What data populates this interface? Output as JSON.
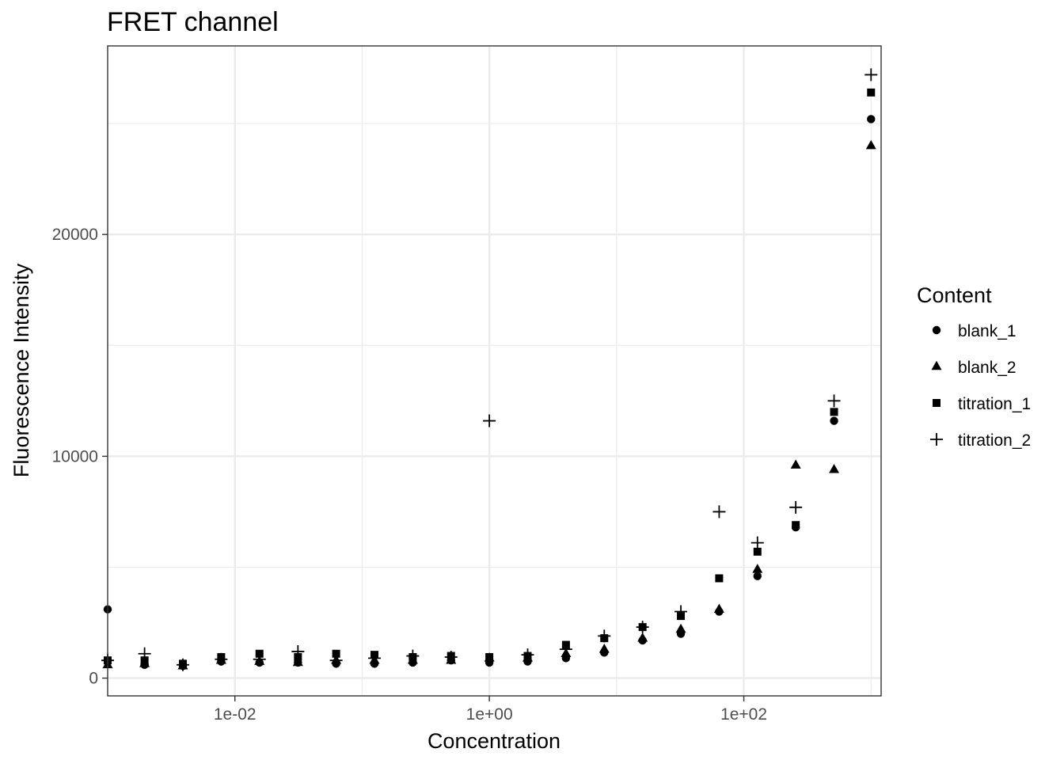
{
  "chart_data": {
    "type": "scatter",
    "title": "FRET channel",
    "xlabel": "Concentration",
    "ylabel": "Fluorescence Intensity",
    "x_scale": "log10",
    "xlim": [
      0.001,
      1200
    ],
    "ylim": [
      -800,
      28500
    ],
    "x_ticks": [
      {
        "value": 0.01,
        "label": "1e-02"
      },
      {
        "value": 1,
        "label": "1e+00"
      },
      {
        "value": 100,
        "label": "1e+02"
      }
    ],
    "y_ticks": [
      {
        "value": 0,
        "label": "0"
      },
      {
        "value": 10000,
        "label": "10000"
      },
      {
        "value": 20000,
        "label": "20000"
      }
    ],
    "grid": true,
    "legend": {
      "title": "Content",
      "position": "right"
    },
    "x": [
      0.001,
      0.00195,
      0.0039,
      0.0078,
      0.0156,
      0.0313,
      0.0625,
      0.125,
      0.25,
      0.5,
      1,
      2,
      4,
      8,
      16,
      32,
      64,
      128,
      256,
      512,
      1000
    ],
    "series": [
      {
        "name": "blank_1",
        "shape": "circle",
        "values": [
          3100,
          600,
          550,
          750,
          700,
          700,
          650,
          650,
          700,
          800,
          700,
          750,
          900,
          1150,
          1700,
          2000,
          3000,
          4600,
          6800,
          11600,
          25200
        ]
      },
      {
        "name": "blank_2",
        "shape": "triangle",
        "values": [
          600,
          650,
          550,
          800,
          750,
          700,
          800,
          800,
          800,
          800,
          900,
          900,
          1100,
          1300,
          1800,
          2200,
          3100,
          4900,
          9600,
          9400,
          24000
        ]
      },
      {
        "name": "titration_1",
        "shape": "square",
        "values": [
          800,
          800,
          650,
          950,
          1100,
          950,
          1100,
          1050,
          950,
          1000,
          950,
          1000,
          1500,
          1800,
          2300,
          2800,
          4500,
          5700,
          6900,
          12000,
          26400
        ]
      },
      {
        "name": "titration_2",
        "shape": "plus",
        "values": [
          800,
          1100,
          600,
          850,
          850,
          1200,
          800,
          900,
          1000,
          950,
          11600,
          1050,
          1300,
          1900,
          2300,
          3000,
          7500,
          6100,
          7700,
          12500,
          27200
        ]
      }
    ]
  }
}
